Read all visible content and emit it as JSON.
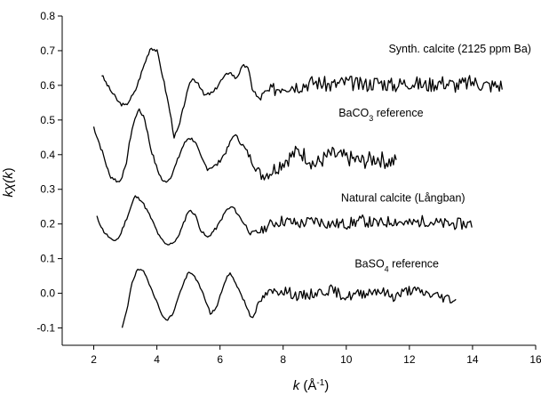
{
  "chart_data": {
    "type": "line",
    "title": "",
    "xlabel": {
      "pre": "k",
      "mid": " (Å",
      "sup": "-1",
      "post": ")"
    },
    "ylabel": {
      "pre": "kχ(",
      "mid": "k",
      "post": ")"
    },
    "xlim": [
      1,
      16
    ],
    "ylim": [
      -0.15,
      0.8
    ],
    "xticks": [
      "2",
      "4",
      "6",
      "8",
      "10",
      "12",
      "14",
      "16"
    ],
    "yticks": [
      "-0.1",
      "0.0",
      "0.1",
      "0.2",
      "0.3",
      "0.4",
      "0.5",
      "0.6",
      "0.7",
      "0.8"
    ],
    "grid": false,
    "series": [
      {
        "name": "Synth. calcite (2125 ppm Ba)",
        "label": {
          "pre": "Synth. calcite (2125 ppm Ba)",
          "sub": "",
          "post": ""
        },
        "label_at": [
          13.6,
          0.695
        ],
        "noise": 0.022,
        "noise_seed": 3,
        "points": [
          [
            2.25,
            0.63
          ],
          [
            2.5,
            0.59
          ],
          [
            2.8,
            0.55
          ],
          [
            3.0,
            0.54
          ],
          [
            3.3,
            0.58
          ],
          [
            3.6,
            0.66
          ],
          [
            3.8,
            0.71
          ],
          [
            4.0,
            0.7
          ],
          [
            4.2,
            0.62
          ],
          [
            4.4,
            0.53
          ],
          [
            4.55,
            0.45
          ],
          [
            4.7,
            0.48
          ],
          [
            4.9,
            0.56
          ],
          [
            5.1,
            0.62
          ],
          [
            5.3,
            0.61
          ],
          [
            5.5,
            0.57
          ],
          [
            5.8,
            0.58
          ],
          [
            6.0,
            0.61
          ],
          [
            6.3,
            0.64
          ],
          [
            6.5,
            0.62
          ],
          [
            6.7,
            0.65
          ],
          [
            6.85,
            0.66
          ],
          [
            7.0,
            0.6
          ],
          [
            7.2,
            0.56
          ],
          [
            7.5,
            0.58
          ],
          [
            8.0,
            0.6
          ],
          [
            8.5,
            0.6
          ],
          [
            9.0,
            0.61
          ],
          [
            9.5,
            0.6
          ],
          [
            10.0,
            0.61
          ],
          [
            10.5,
            0.6
          ],
          [
            11.0,
            0.61
          ],
          [
            11.5,
            0.6
          ],
          [
            12.0,
            0.61
          ],
          [
            12.5,
            0.6
          ],
          [
            13.0,
            0.61
          ],
          [
            13.5,
            0.6
          ],
          [
            14.0,
            0.61
          ],
          [
            14.5,
            0.6
          ],
          [
            14.95,
            0.6
          ]
        ]
      },
      {
        "name": "BaCO3 reference",
        "label": {
          "pre": "BaCO",
          "sub": "3",
          "post": " reference"
        },
        "label_at": [
          11.1,
          0.51
        ],
        "noise": 0.024,
        "noise_seed": 7,
        "points": [
          [
            2.0,
            0.48
          ],
          [
            2.3,
            0.4
          ],
          [
            2.5,
            0.34
          ],
          [
            2.8,
            0.32
          ],
          [
            3.0,
            0.36
          ],
          [
            3.2,
            0.47
          ],
          [
            3.4,
            0.53
          ],
          [
            3.6,
            0.51
          ],
          [
            3.8,
            0.42
          ],
          [
            4.0,
            0.36
          ],
          [
            4.2,
            0.32
          ],
          [
            4.4,
            0.33
          ],
          [
            4.6,
            0.37
          ],
          [
            4.8,
            0.42
          ],
          [
            5.0,
            0.45
          ],
          [
            5.2,
            0.44
          ],
          [
            5.4,
            0.39
          ],
          [
            5.6,
            0.36
          ],
          [
            5.9,
            0.37
          ],
          [
            6.2,
            0.41
          ],
          [
            6.45,
            0.46
          ],
          [
            6.7,
            0.43
          ],
          [
            6.9,
            0.4
          ],
          [
            7.1,
            0.37
          ],
          [
            7.3,
            0.34
          ],
          [
            7.6,
            0.35
          ],
          [
            8.0,
            0.38
          ],
          [
            8.5,
            0.41
          ],
          [
            8.8,
            0.39
          ],
          [
            9.0,
            0.37
          ],
          [
            9.5,
            0.4
          ],
          [
            10.0,
            0.39
          ],
          [
            10.5,
            0.38
          ],
          [
            11.0,
            0.39
          ],
          [
            11.3,
            0.38
          ],
          [
            11.6,
            0.38
          ]
        ]
      },
      {
        "name": "Natural calcite (Långban)",
        "label": {
          "pre": "Natural calcite (Långban)",
          "sub": "",
          "post": ""
        },
        "label_at": [
          11.8,
          0.265
        ],
        "noise": 0.017,
        "noise_seed": 11,
        "points": [
          [
            2.1,
            0.22
          ],
          [
            2.3,
            0.18
          ],
          [
            2.6,
            0.15
          ],
          [
            2.8,
            0.16
          ],
          [
            3.1,
            0.23
          ],
          [
            3.3,
            0.28
          ],
          [
            3.5,
            0.27
          ],
          [
            3.8,
            0.22
          ],
          [
            4.1,
            0.16
          ],
          [
            4.3,
            0.14
          ],
          [
            4.6,
            0.15
          ],
          [
            4.8,
            0.19
          ],
          [
            5.0,
            0.24
          ],
          [
            5.2,
            0.23
          ],
          [
            5.4,
            0.18
          ],
          [
            5.6,
            0.16
          ],
          [
            5.9,
            0.19
          ],
          [
            6.2,
            0.24
          ],
          [
            6.4,
            0.25
          ],
          [
            6.7,
            0.21
          ],
          [
            7.0,
            0.17
          ],
          [
            7.3,
            0.18
          ],
          [
            7.6,
            0.2
          ],
          [
            8.0,
            0.21
          ],
          [
            8.5,
            0.2
          ],
          [
            9.0,
            0.21
          ],
          [
            9.5,
            0.2
          ],
          [
            10.0,
            0.2
          ],
          [
            10.5,
            0.21
          ],
          [
            11.0,
            0.2
          ],
          [
            11.5,
            0.21
          ],
          [
            12.0,
            0.2
          ],
          [
            12.5,
            0.21
          ],
          [
            13.0,
            0.2
          ],
          [
            13.5,
            0.2
          ],
          [
            14.0,
            0.2
          ]
        ]
      },
      {
        "name": "BaSO4 reference",
        "label": {
          "pre": "BaSO",
          "sub": "4",
          "post": " reference"
        },
        "label_at": [
          11.6,
          0.075
        ],
        "noise": 0.015,
        "noise_seed": 19,
        "points": [
          [
            2.9,
            -0.1
          ],
          [
            3.05,
            -0.05
          ],
          [
            3.2,
            0.03
          ],
          [
            3.4,
            0.07
          ],
          [
            3.6,
            0.06
          ],
          [
            3.85,
            0.01
          ],
          [
            4.1,
            -0.05
          ],
          [
            4.3,
            -0.08
          ],
          [
            4.5,
            -0.06
          ],
          [
            4.8,
            0.02
          ],
          [
            5.0,
            0.06
          ],
          [
            5.2,
            0.05
          ],
          [
            5.5,
            -0.01
          ],
          [
            5.7,
            -0.06
          ],
          [
            5.9,
            -0.04
          ],
          [
            6.1,
            0.02
          ],
          [
            6.3,
            0.06
          ],
          [
            6.5,
            0.03
          ],
          [
            6.8,
            -0.03
          ],
          [
            7.0,
            -0.07
          ],
          [
            7.3,
            -0.02
          ],
          [
            7.5,
            0.0
          ],
          [
            8.0,
            0.01
          ],
          [
            8.5,
            -0.01
          ],
          [
            9.0,
            0.0
          ],
          [
            9.5,
            0.01
          ],
          [
            10.0,
            -0.01
          ],
          [
            10.5,
            0.0
          ],
          [
            11.0,
            0.01
          ],
          [
            11.5,
            -0.01
          ],
          [
            12.0,
            0.01
          ],
          [
            12.5,
            0.0
          ],
          [
            13.0,
            -0.01
          ],
          [
            13.5,
            -0.02
          ]
        ]
      }
    ]
  }
}
